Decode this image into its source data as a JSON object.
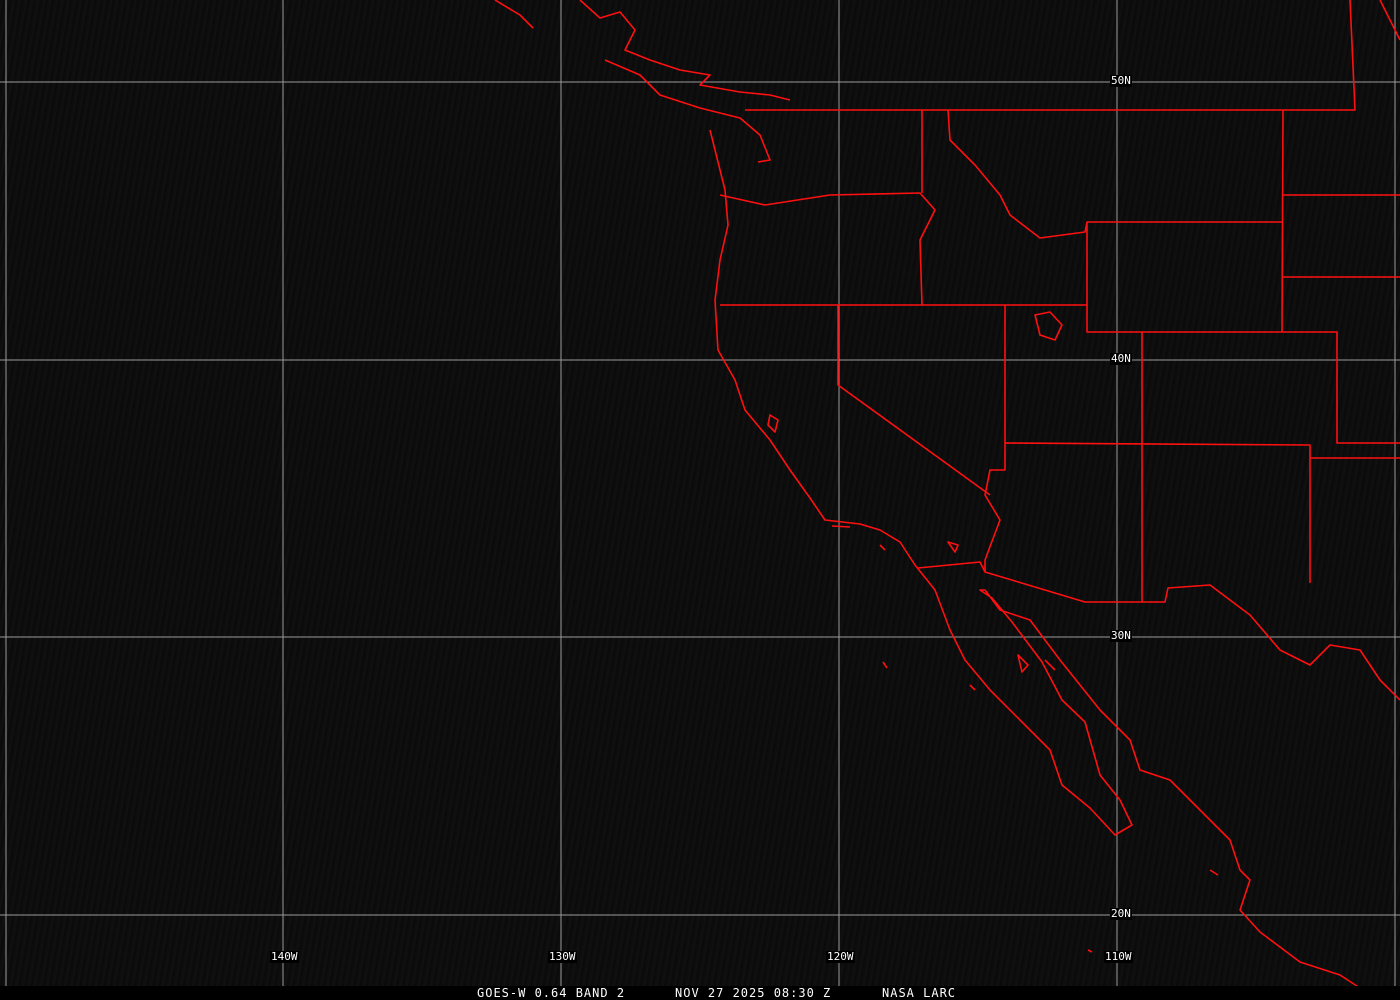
{
  "map": {
    "colors": {
      "background": "#0c0c0c",
      "grid": "#9a9a9a",
      "boundaries": "#ff0000",
      "labels": "#ffffff"
    },
    "latitude_labels": [
      "50N",
      "40N",
      "30N",
      "20N"
    ],
    "longitude_labels": [
      "140W",
      "130W",
      "120W",
      "110W"
    ]
  },
  "caption": {
    "product": "GOES-W 0.64 BAND 2",
    "datetime": "NOV 27 2025 08:30 Z",
    "source": "NASA LARC"
  }
}
